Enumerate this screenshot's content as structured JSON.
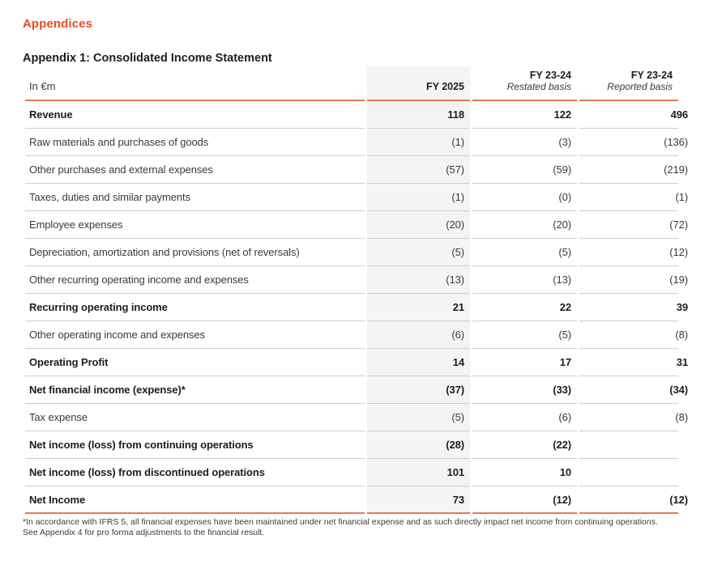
{
  "page": {
    "section_title": "Appendices",
    "appendix_title": "Appendix 1: Consolidated Income Statement"
  },
  "colors": {
    "accent_orange": "#e84e1b",
    "rule_orange": "#e87a50",
    "divider_gray": "#cdcdcd",
    "highlight_column_bg": "#f4f4f4"
  },
  "table": {
    "unit_label": "In €m",
    "columns": [
      {
        "label": "FY 2025",
        "sublabel": ""
      },
      {
        "label": "FY 23-24",
        "sublabel": "Restated basis"
      },
      {
        "label": "FY 23-24",
        "sublabel": "Reported basis"
      }
    ],
    "rows": [
      {
        "label": "Revenue",
        "fy2025": "118",
        "restated": "122",
        "reported": "496"
      },
      {
        "label": "Raw materials and purchases of goods",
        "fy2025": "(1)",
        "restated": "(3)",
        "reported": "(136)"
      },
      {
        "label": "Other purchases and external expenses",
        "fy2025": "(57)",
        "restated": "(59)",
        "reported": "(219)"
      },
      {
        "label": "Taxes, duties and similar payments",
        "fy2025": "(1)",
        "restated": "(0)",
        "reported": "(1)"
      },
      {
        "label": "Employee expenses",
        "fy2025": "(20)",
        "restated": "(20)",
        "reported": "(72)"
      },
      {
        "label": "Depreciation, amortization and provisions (net of reversals)",
        "fy2025": "(5)",
        "restated": "(5)",
        "reported": "(12)"
      },
      {
        "label": "Other recurring operating income and expenses",
        "fy2025": "(13)",
        "restated": "(13)",
        "reported": "(19)"
      },
      {
        "label": "Recurring operating income",
        "fy2025": "21",
        "restated": "22",
        "reported": "39"
      },
      {
        "label": "Other operating income and expenses",
        "fy2025": "(6)",
        "restated": "(5)",
        "reported": "(8)"
      },
      {
        "label": "Operating Profit",
        "fy2025": "14",
        "restated": "17",
        "reported": "31"
      },
      {
        "label": "Net financial income (expense)*",
        "fy2025": "(37)",
        "restated": "(33)",
        "reported": "(34)"
      },
      {
        "label": "Tax expense",
        "fy2025": "(5)",
        "restated": "(6)",
        "reported": "(8)"
      },
      {
        "label": "Net income (loss) from continuing operations",
        "fy2025": "(28)",
        "restated": "(22)",
        "reported": ""
      },
      {
        "label": "Net income (loss) from discontinued operations",
        "fy2025": "101",
        "restated": "10",
        "reported": ""
      },
      {
        "label": "Net Income",
        "fy2025": "73",
        "restated": "(12)",
        "reported": "(12)"
      }
    ],
    "footnote": "*In accordance with IFRS 5, all financial expenses have been maintained under net financial expense and as such directly impact net income from continuing operations. See Appendix 4 for pro forma adjustments to the financial result."
  }
}
